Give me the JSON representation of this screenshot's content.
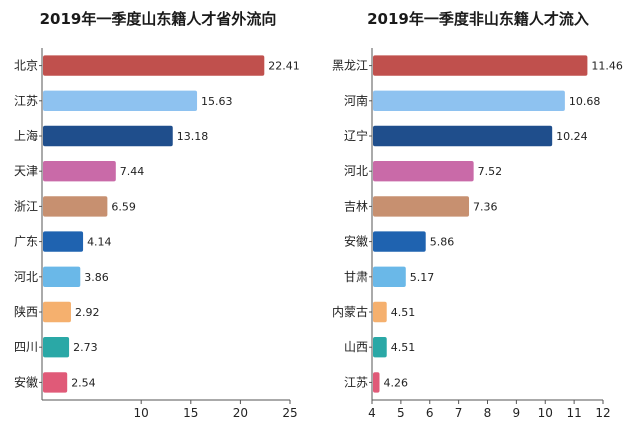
{
  "chart_data": [
    {
      "type": "bar",
      "orientation": "horizontal",
      "title": "2019年一季度山东籍人才省外流向",
      "categories": [
        "北京",
        "江苏",
        "上海",
        "天津",
        "浙江",
        "广东",
        "河北",
        "陕西",
        "四川",
        "安徽"
      ],
      "values": [
        22.41,
        15.63,
        13.18,
        7.44,
        6.59,
        4.14,
        3.86,
        2.92,
        2.73,
        2.54
      ],
      "value_labels": [
        "22.41",
        "15.63",
        "13.18",
        "7.44",
        "6.59",
        "4.14",
        "3.86",
        "2.92",
        "2.73",
        "2.54"
      ],
      "colors": [
        "#c0504d",
        "#8ec2f0",
        "#1f4e8c",
        "#c96aa8",
        "#c79070",
        "#1f63b0",
        "#6ab8e8",
        "#f5b06e",
        "#2aa8a6",
        "#e05a78"
      ],
      "xlim": [
        0,
        25
      ],
      "xticks": [
        "10",
        "15",
        "20",
        "25"
      ],
      "grid": false
    },
    {
      "type": "bar",
      "orientation": "horizontal",
      "title": "2019年一季度非山东籍人才流入",
      "categories": [
        "黑龙江",
        "河南",
        "辽宁",
        "河北",
        "吉林",
        "安徽",
        "甘肃",
        "内蒙古",
        "山西",
        "江苏"
      ],
      "values": [
        11.46,
        10.68,
        10.24,
        7.52,
        7.36,
        5.86,
        5.17,
        4.51,
        4.51,
        4.26
      ],
      "value_labels": [
        "11.46",
        "10.68",
        "10.24",
        "7.52",
        "7.36",
        "5.86",
        "5.17",
        "4.51",
        "4.51",
        "4.26"
      ],
      "colors": [
        "#c0504d",
        "#8ec2f0",
        "#1f4e8c",
        "#c96aa8",
        "#c79070",
        "#1f63b0",
        "#6ab8e8",
        "#f5b06e",
        "#2aa8a6",
        "#e05a78"
      ],
      "xlim": [
        4,
        12
      ],
      "xticks": [
        "4",
        "5",
        "6",
        "7",
        "8",
        "9",
        "10",
        "11",
        "12"
      ],
      "grid": false
    }
  ]
}
